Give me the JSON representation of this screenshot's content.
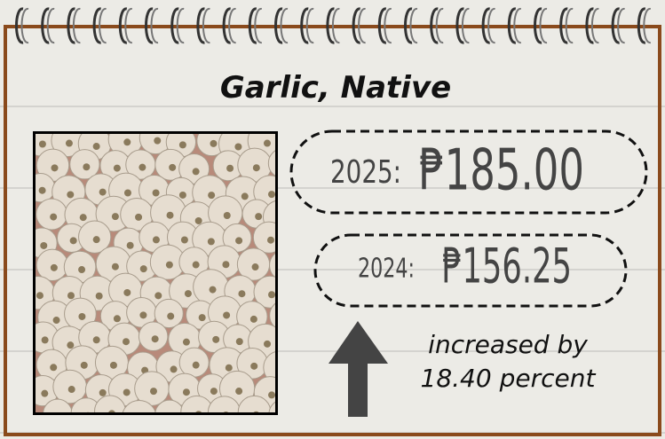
{
  "card": {
    "title": "Garlic, Native",
    "prices": [
      {
        "year": "2025:",
        "price": "₱185.00"
      },
      {
        "year": "2024:",
        "price": "₱156.25"
      }
    ],
    "change": [
      "increased by",
      "18.40 percent"
    ]
  }
}
